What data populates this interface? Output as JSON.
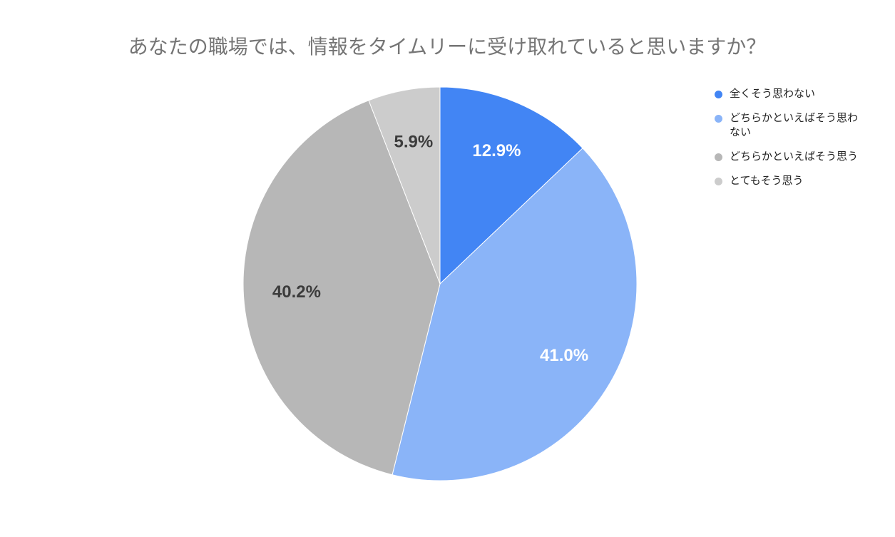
{
  "chart_data": {
    "type": "pie",
    "title": "あなたの職場では、情報をタイムリーに受け取れていると思いますか？",
    "categories": [
      "全くそう思わない",
      "どちらかといえばそう思わない",
      "どちらかといえばそう思う",
      "とてもそう思う"
    ],
    "values": [
      12.9,
      41.0,
      40.2,
      5.9
    ],
    "value_labels": [
      "12.9%",
      "41.0%",
      "40.2%",
      "5.9%"
    ],
    "colors": [
      "#4285f4",
      "#8ab4f8",
      "#b7b7b7",
      "#cccccc"
    ],
    "label_colors": [
      "#ffffff",
      "#ffffff",
      "#3c3c3c",
      "#3c3c3c"
    ],
    "legend": "right"
  }
}
